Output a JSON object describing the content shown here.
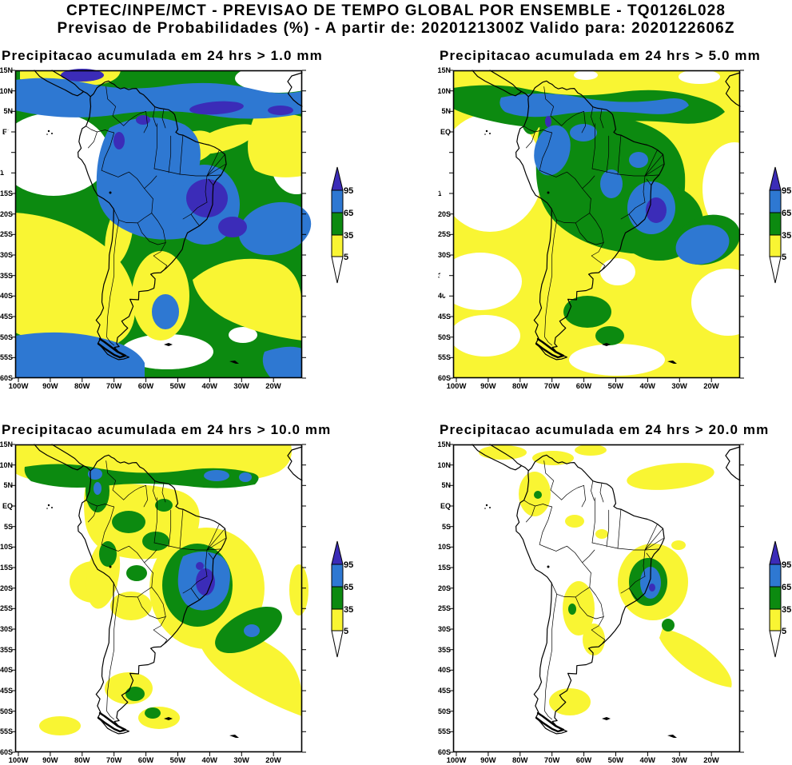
{
  "header": {
    "line1": "CPTEC/INPE/MCT - PREVISAO DE TEMPO GLOBAL POR ENSEMBLE - TQ0126L028",
    "line2": "Previsao de Probabilidades (%) -  A partir de: 2020121300Z  Valido para: 2020122606Z"
  },
  "panels": [
    {
      "title": "Precipitacao acumulada em 24 hrs > 1.0 mm",
      "threshold_mm": 1.0
    },
    {
      "title": "Precipitacao acumulada em 24 hrs > 5.0 mm",
      "threshold_mm": 5.0
    },
    {
      "title": "Precipitacao acumulada em 24 hrs > 10.0 mm",
      "threshold_mm": 10.0
    },
    {
      "title": "Precipitacao acumulada em 24 hrs > 20.0 mm",
      "threshold_mm": 20.0
    }
  ],
  "axes": {
    "lat_labels": [
      "15N",
      "10N",
      "5N",
      "EQ",
      "5S",
      "10S",
      "15S",
      "20S",
      "25S",
      "30S",
      "35S",
      "40S",
      "45S",
      "50S",
      "55S",
      "60S"
    ],
    "lon_labels": [
      "100W",
      "90W",
      "80W",
      "70W",
      "60W",
      "50W",
      "40W",
      "30W",
      "20W"
    ]
  },
  "colorbar": {
    "labels": [
      "95",
      "65",
      "35",
      "5"
    ],
    "segment_colors_top_to_bottom": [
      "#3b2cb8",
      "#2e78d2",
      "#0c8a10",
      "#f9f533",
      "#ffffff"
    ],
    "units": "%"
  },
  "colors": {
    "purple": "#3b2cb8",
    "blue": "#2e78d2",
    "green": "#0c8a10",
    "yellow": "#f9f533",
    "background": "#ffffff"
  },
  "chart_data": [
    {
      "type": "heatmap",
      "title": "Precipitacao acumulada em 24 hrs > 1.0 mm",
      "region": "South America",
      "lon_range": [
        "100W",
        "20W"
      ],
      "lat_range": [
        "60S",
        "15N"
      ],
      "probability_levels_percent": [
        5,
        35,
        65,
        95
      ],
      "level_colors": {
        "5-35": "#f9f533",
        "35-65": "#0c8a10",
        "65-95": "#2e78d2",
        "95-100": "#3b2cb8"
      },
      "notes": "Widespread blue/green over Amazon and tropical Atlantic band; purple maxima over southeast Brazil and near 5N; yellow bands over southeast Pacific and south Atlantic"
    },
    {
      "type": "heatmap",
      "title": "Precipitacao acumulada em 24 hrs > 5.0 mm",
      "region": "South America",
      "lon_range": [
        "100W",
        "20W"
      ],
      "lat_range": [
        "60S",
        "15N"
      ],
      "probability_levels_percent": [
        5,
        35,
        65,
        95
      ],
      "level_colors": {
        "5-35": "#f9f533",
        "35-65": "#0c8a10",
        "65-95": "#2e78d2",
        "95-100": "#3b2cb8"
      },
      "notes": "Green/blue over Amazon and a blue area with purple core over southeast Brazil; yellow elsewhere"
    },
    {
      "type": "heatmap",
      "title": "Precipitacao acumulada em 24 hrs > 10.0 mm",
      "region": "South America",
      "lon_range": [
        "100W",
        "20W"
      ],
      "lat_range": [
        "60S",
        "15N"
      ],
      "probability_levels_percent": [
        5,
        35,
        65,
        95
      ],
      "level_colors": {
        "5-35": "#f9f533",
        "35-65": "#0c8a10",
        "65-95": "#2e78d2",
        "95-100": "#3b2cb8"
      },
      "notes": "Mostly yellow/white; green band near 5N; blue blob with purple core over southeast Brazil"
    },
    {
      "type": "heatmap",
      "title": "Precipitacao acumulada em 24 hrs > 20.0 mm",
      "region": "South America",
      "lon_range": [
        "100W",
        "20W"
      ],
      "lat_range": [
        "60S",
        "15N"
      ],
      "probability_levels_percent": [
        5,
        35,
        65,
        95
      ],
      "level_colors": {
        "5-35": "#f9f533",
        "35-65": "#0c8a10",
        "65-95": "#2e78d2",
        "95-100": "#3b2cb8"
      },
      "notes": "Mostly white; small yellow patches; compact green/blue maximum with tiny purple core over southeast Brazil"
    }
  ]
}
